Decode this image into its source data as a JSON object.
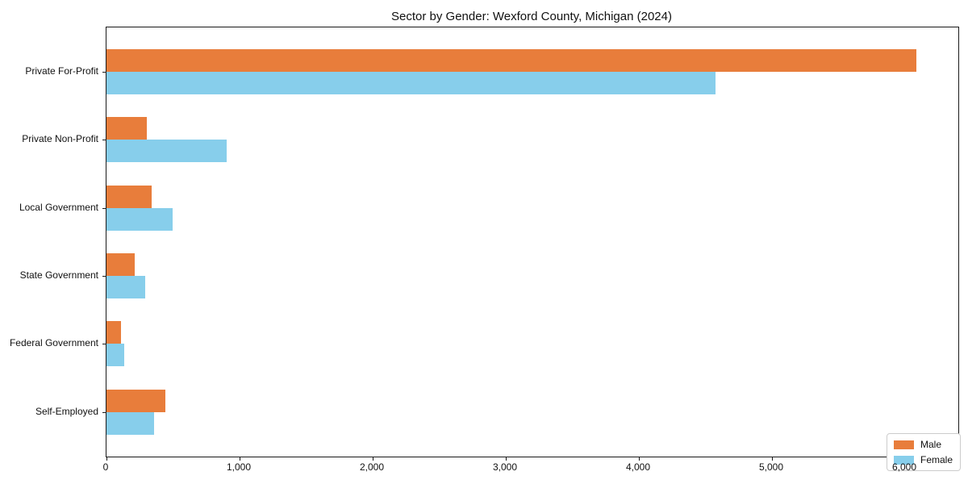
{
  "title": "Sector by Gender: Wexford County, Michigan (2024)",
  "colors": {
    "male": "#e87d3b",
    "female": "#87ceeb",
    "spine": "#1a1a1a",
    "legend_border": "#cccccc",
    "background": "#ffffff"
  },
  "chart_data": {
    "type": "bar",
    "orientation": "horizontal",
    "title": "Sector by Gender: Wexford County, Michigan (2024)",
    "categories": [
      "Private For-Profit",
      "Private Non-Profit",
      "Local Government",
      "State Government",
      "Federal Government",
      "Self-Employed"
    ],
    "series": [
      {
        "name": "Male",
        "color": "#e87d3b",
        "values": [
          6085,
          300,
          340,
          215,
          112,
          440
        ]
      },
      {
        "name": "Female",
        "color": "#87ceeb",
        "values": [
          4575,
          905,
          495,
          290,
          132,
          360
        ]
      }
    ],
    "xlabel": "",
    "ylabel": "",
    "xlim": [
      0,
      6400
    ],
    "x_ticks": [
      0,
      1000,
      2000,
      3000,
      4000,
      5000,
      6000
    ],
    "x_tick_labels": [
      "0",
      "1,000",
      "2,000",
      "3,000",
      "4,000",
      "5,000",
      "6,000"
    ],
    "grid": false,
    "legend_position": "lower right"
  }
}
